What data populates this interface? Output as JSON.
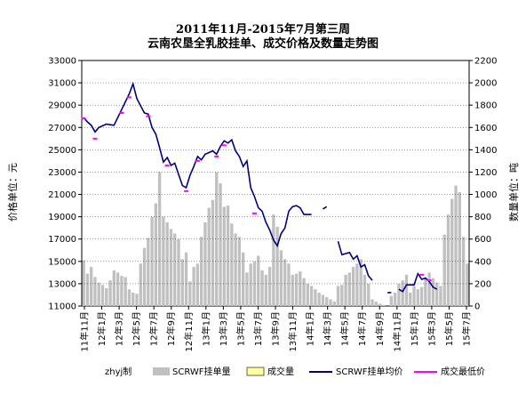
{
  "chart_data": {
    "type": "bar+line",
    "title_line1": "2011年11月-2015年7月第三周",
    "title_line2": "云南农垦全乳胶挂单、成交价格及数量走势图",
    "ylabel_left": "价格单位：元",
    "ylabel_right": "数量单位：吨",
    "ylim_left": [
      11000,
      33000
    ],
    "ylim_right": [
      0,
      2200
    ],
    "yticks_left": [
      "33000",
      "31000",
      "29000",
      "27000",
      "25000",
      "23000",
      "21000",
      "19000",
      "17000",
      "15000",
      "13000",
      "11000"
    ],
    "yticks_right": [
      "2200",
      "2000",
      "1800",
      "1600",
      "1400",
      "1200",
      "1000",
      "800",
      "600",
      "400",
      "200",
      "0"
    ],
    "x_ticks": [
      "11年11月",
      "12年1月",
      "12年3月",
      "12年5月",
      "12年7月",
      "12年9月",
      "12年11月",
      "13年1月",
      "13年3月",
      "13年5月",
      "13年7月",
      "13年9月",
      "13年11月",
      "14年1月",
      "14年3月",
      "14年5月",
      "14年7月",
      "14年9月",
      "14年11月",
      "15年1月",
      "15年3月",
      "15年5月",
      "15年7月"
    ],
    "legend": {
      "author": "zhyj制",
      "volume_listed": "SCRWF挂单量",
      "volume_traded": "成交量",
      "avg_price": "SCRWF挂单均价",
      "min_price": "成交最低价"
    },
    "colors": {
      "volume_listed": "#c0c0c0",
      "volume_traded": "#ffff99",
      "avg_price": "#000080",
      "min_price": "#ff00ff"
    },
    "series_avg_price": {
      "name": "SCRWF挂单均价",
      "points": [
        [
          0,
          27900
        ],
        [
          1,
          27500
        ],
        [
          2,
          27200
        ],
        [
          3,
          26600
        ],
        [
          4,
          27000
        ],
        [
          6,
          27300
        ],
        [
          8,
          27200
        ],
        [
          10,
          28600
        ],
        [
          12,
          30000
        ],
        [
          13,
          30900
        ],
        [
          14,
          29600
        ],
        [
          16,
          28300
        ],
        [
          17,
          28200
        ],
        [
          18,
          27000
        ],
        [
          19,
          26400
        ],
        [
          20,
          25200
        ],
        [
          21,
          23900
        ],
        [
          22,
          24300
        ],
        [
          23,
          23600
        ],
        [
          24,
          23800
        ],
        [
          25,
          22800
        ],
        [
          26,
          21800
        ],
        [
          27,
          21600
        ],
        [
          28,
          22700
        ],
        [
          29,
          23500
        ],
        [
          30,
          24400
        ],
        [
          31,
          24100
        ],
        [
          32,
          24600
        ],
        [
          34,
          24900
        ],
        [
          35,
          24600
        ],
        [
          36,
          25300
        ],
        [
          37,
          25800
        ],
        [
          38,
          25600
        ],
        [
          39,
          25900
        ],
        [
          40,
          24900
        ],
        [
          41,
          24400
        ],
        [
          42,
          23500
        ],
        [
          43,
          24000
        ],
        [
          44,
          21600
        ],
        [
          45,
          20800
        ],
        [
          46,
          19800
        ],
        [
          47,
          19500
        ],
        [
          48,
          18500
        ],
        [
          49,
          17800
        ],
        [
          50,
          16900
        ],
        [
          51,
          16400
        ],
        [
          52,
          17500
        ],
        [
          53,
          18000
        ],
        [
          54,
          19500
        ],
        [
          55,
          19900
        ],
        [
          56,
          20000
        ],
        [
          57,
          19800
        ],
        [
          58,
          19200
        ],
        [
          60,
          19200
        ]
      ],
      "points_2": [
        [
          63,
          19700
        ],
        [
          64,
          19900
        ]
      ],
      "points_3": [
        [
          67,
          16800
        ],
        [
          68,
          15600
        ],
        [
          70,
          15800
        ],
        [
          71,
          15200
        ],
        [
          72,
          15500
        ],
        [
          73,
          14500
        ],
        [
          74,
          14700
        ],
        [
          75,
          13700
        ],
        [
          76,
          13300
        ]
      ],
      "points_4": [
        [
          80,
          12200
        ],
        [
          81,
          12200
        ]
      ],
      "points_5": [
        [
          83,
          12500
        ],
        [
          84,
          12300
        ],
        [
          85,
          12900
        ],
        [
          87,
          12900
        ],
        [
          88,
          13900
        ],
        [
          89,
          13400
        ],
        [
          90,
          13500
        ],
        [
          91,
          13200
        ],
        [
          92,
          12700
        ],
        [
          93,
          12500
        ]
      ]
    },
    "series_min_price": {
      "name": "成交最低价",
      "points": [
        [
          0,
          27800
        ],
        [
          3,
          26000
        ],
        [
          10,
          28300
        ],
        [
          12,
          29700
        ],
        [
          17,
          28000
        ],
        [
          22,
          23600
        ],
        [
          27,
          21300
        ],
        [
          30,
          24000
        ],
        [
          35,
          24400
        ],
        [
          37,
          25400
        ],
        [
          45,
          19300
        ],
        [
          89,
          13800
        ],
        [
          91,
          13300
        ]
      ]
    },
    "series_volume_listed": {
      "name": "SCRWF挂单量",
      "values": [
        410,
        290,
        350,
        260,
        210,
        190,
        160,
        230,
        320,
        300,
        270,
        260,
        150,
        120,
        110,
        380,
        520,
        610,
        800,
        920,
        1200,
        800,
        750,
        690,
        650,
        600,
        420,
        480,
        220,
        350,
        380,
        620,
        750,
        880,
        950,
        1200,
        1100,
        890,
        900,
        740,
        650,
        620,
        480,
        300,
        380,
        400,
        450,
        320,
        280,
        350,
        820,
        710,
        500,
        420,
        380,
        280,
        290,
        310,
        250,
        200,
        180,
        150,
        120,
        100,
        80,
        60,
        40,
        180,
        190,
        280,
        300,
        350,
        380,
        420,
        280,
        200,
        60,
        40,
        20,
        10,
        0,
        90,
        120,
        200,
        230,
        280,
        120,
        180,
        150,
        170,
        260,
        300,
        250,
        210,
        180,
        640,
        820,
        960,
        1080,
        1020,
        620,
        380
      ],
      "note": ""
    }
  }
}
